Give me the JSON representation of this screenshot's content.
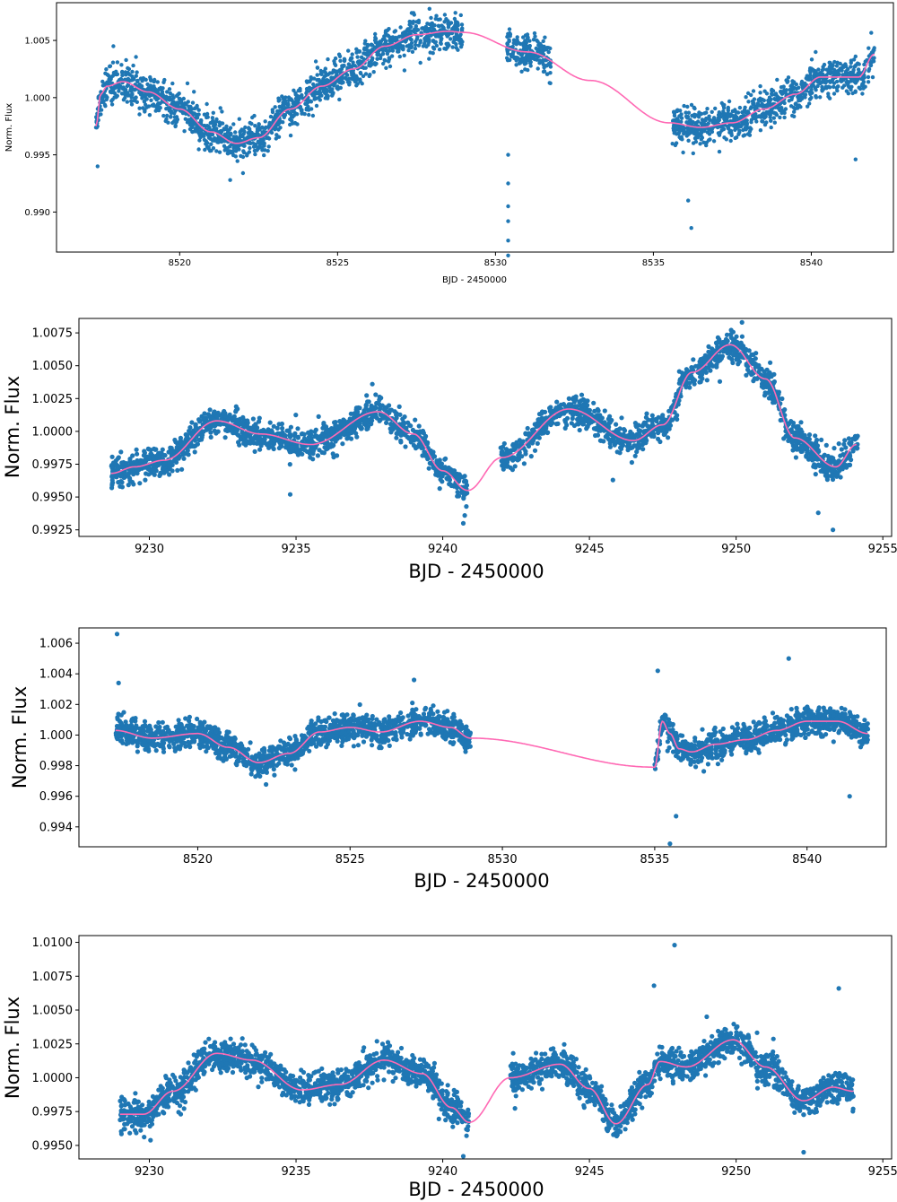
{
  "chart_data": [
    {
      "type": "scatter",
      "xlabel": "BJD - 2450000",
      "ylabel": "Norm. Flux",
      "xlim": [
        8516.1,
        8542.6
      ],
      "ylim": [
        0.9865,
        1.0083
      ],
      "xticks": [
        8520,
        8525,
        8530,
        8535,
        8540
      ],
      "xtick_labels": [
        "8520",
        "8525",
        "8530",
        "8535",
        "8540"
      ],
      "yticks": [
        0.99,
        0.995,
        1.0,
        1.005
      ],
      "ytick_labels": [
        "0.990",
        "0.995",
        "1.000",
        "1.005"
      ],
      "segments": [
        [
          8517.35,
          8528.95
        ],
        [
          8530.35,
          8531.75
        ],
        [
          8535.6,
          8542.0
        ]
      ],
      "scatter_sigma": 0.0008,
      "series": [
        {
          "name": "data",
          "style": "points",
          "color": "#1f77b4"
        },
        {
          "name": "model",
          "style": "line",
          "color": "#ff69b4",
          "x": [
            8517.35,
            8517.5,
            8517.7,
            8518.2,
            8519.0,
            8520.0,
            8521.0,
            8521.8,
            8522.5,
            8523.5,
            8524.5,
            8525.5,
            8526.5,
            8527.5,
            8528.5,
            8529.0,
            8531.0,
            8533.0,
            8535.5,
            8536.5,
            8537.5,
            8538.5,
            8539.5,
            8540.3,
            8541.0,
            8541.5,
            8542.0
          ],
          "y": [
            0.9975,
            1.0003,
            1.001,
            1.0014,
            1.0005,
            0.999,
            0.997,
            0.996,
            0.9965,
            0.999,
            1.001,
            1.0025,
            1.0045,
            1.0055,
            1.0058,
            1.0057,
            1.004,
            1.0015,
            0.9978,
            0.9974,
            0.9978,
            0.999,
            1.0003,
            1.0018,
            1.0018,
            1.0018,
            1.0038
          ]
        }
      ],
      "outliers": [
        [
          8517.4,
          0.994
        ],
        [
          8517.9,
          1.0045
        ],
        [
          8521.6,
          0.9928
        ],
        [
          8530.4,
          0.9862
        ],
        [
          8530.4,
          0.9875
        ],
        [
          8530.4,
          0.9892
        ],
        [
          8530.4,
          0.9905
        ],
        [
          8530.4,
          0.9925
        ],
        [
          8530.4,
          0.995
        ],
        [
          8536.2,
          0.9886
        ],
        [
          8536.1,
          0.991
        ],
        [
          8541.4,
          0.9946
        ]
      ]
    },
    {
      "type": "scatter",
      "xlabel": "BJD - 2450000",
      "ylabel": "Norm. Flux",
      "xlim": [
        9227.6,
        9255.3
      ],
      "ylim": [
        0.992,
        1.0086
      ],
      "xticks": [
        9230,
        9235,
        9240,
        9245,
        9250,
        9255
      ],
      "xtick_labels": [
        "9230",
        "9235",
        "9240",
        "9245",
        "9250",
        "9255"
      ],
      "yticks": [
        0.9925,
        0.995,
        0.9975,
        1.0,
        1.0025,
        1.005,
        1.0075
      ],
      "ytick_labels": [
        "0.9925",
        "0.9950",
        "0.9975",
        "1.0000",
        "1.0025",
        "1.0050",
        "1.0075"
      ],
      "segments": [
        [
          9228.7,
          9240.85
        ],
        [
          9241.95,
          9254.15
        ]
      ],
      "scatter_sigma": 0.00055,
      "series": [
        {
          "name": "data",
          "style": "points",
          "color": "#1f77b4"
        },
        {
          "name": "model",
          "style": "line",
          "color": "#ff69b4",
          "x": [
            9228.7,
            9229.5,
            9230.5,
            9232.3,
            9233.8,
            9235.5,
            9237.8,
            9239.0,
            9240.0,
            9240.85,
            9242.0,
            9244.3,
            9246.5,
            9247.5,
            9248.5,
            9249.8,
            9251.0,
            9252.0,
            9253.4,
            9254.1
          ],
          "y": [
            0.9968,
            0.9973,
            0.9978,
            1.0008,
            0.9998,
            0.999,
            1.0015,
            0.9998,
            0.997,
            0.9955,
            0.998,
            1.0017,
            0.9993,
            1.0005,
            1.0045,
            1.0066,
            1.004,
            0.9995,
            0.9973,
            0.999
          ]
        }
      ],
      "outliers": [
        [
          9234.8,
          0.9952
        ],
        [
          9240.7,
          0.993
        ],
        [
          9245.8,
          0.9963
        ],
        [
          9252.8,
          0.9938
        ],
        [
          9253.3,
          0.9925
        ],
        [
          9250.2,
          1.0083
        ],
        [
          9237.6,
          1.0036
        ]
      ]
    },
    {
      "type": "scatter",
      "xlabel": "BJD - 2450000",
      "ylabel": "Norm. Flux",
      "xlim": [
        8516.1,
        8542.6
      ],
      "ylim": [
        0.9927,
        1.007
      ],
      "xticks": [
        8520,
        8525,
        8530,
        8535,
        8540
      ],
      "xtick_labels": [
        "8520",
        "8525",
        "8530",
        "8535",
        "8540"
      ],
      "yticks": [
        0.994,
        0.996,
        0.998,
        1.0,
        1.002,
        1.004,
        1.006
      ],
      "ytick_labels": [
        "0.994",
        "0.996",
        "0.998",
        "1.000",
        "1.002",
        "1.004",
        "1.006"
      ],
      "segments": [
        [
          8517.3,
          8528.95
        ],
        [
          8535.0,
          8542.0
        ]
      ],
      "scatter_sigma": 0.00045,
      "series": [
        {
          "name": "data",
          "style": "points",
          "color": "#1f77b4"
        },
        {
          "name": "model",
          "style": "line",
          "color": "#ff69b4",
          "x": [
            8517.3,
            8518.5,
            8520.0,
            8521.0,
            8522.0,
            8523.0,
            8524.0,
            8525.0,
            8526.0,
            8527.3,
            8528.3,
            8528.95,
            8535.0,
            8535.25,
            8535.5,
            8535.8,
            8536.2,
            8537.0,
            8538.0,
            8539.0,
            8540.0,
            8541.0,
            8542.0
          ],
          "y": [
            1.0003,
            0.9998,
            1.0001,
            0.9992,
            0.9982,
            0.9988,
            1.0002,
            1.0005,
            1.0002,
            1.0009,
            1.0005,
            0.9998,
            0.9979,
            1.0009,
            1.0001,
            0.9991,
            0.9989,
            0.9994,
            0.9997,
            1.0003,
            1.0009,
            1.0009,
            1.0001
          ]
        }
      ],
      "outliers": [
        [
          8517.35,
          1.0066
        ],
        [
          8517.4,
          1.0034
        ],
        [
          8527.1,
          1.0036
        ],
        [
          8535.1,
          1.0042
        ],
        [
          8535.5,
          0.9929
        ],
        [
          8535.7,
          0.9947
        ],
        [
          8539.4,
          1.005
        ],
        [
          8541.4,
          0.996
        ]
      ]
    },
    {
      "type": "scatter",
      "xlabel": "BJD - 2450000",
      "ylabel": "Norm. Flux",
      "xlim": [
        9227.6,
        9255.3
      ],
      "ylim": [
        0.994,
        1.0105
      ],
      "xticks": [
        9230,
        9235,
        9240,
        9245,
        9250,
        9255
      ],
      "xtick_labels": [
        "9230",
        "9235",
        "9240",
        "9245",
        "9250",
        "9255"
      ],
      "yticks": [
        0.995,
        0.9975,
        1.0,
        1.0025,
        1.005,
        1.0075,
        1.01
      ],
      "ytick_labels": [
        "0.9950",
        "0.9975",
        "1.0000",
        "1.0025",
        "1.0050",
        "1.0075",
        "1.0100"
      ],
      "segments": [
        [
          9229.0,
          9240.9
        ],
        [
          9242.3,
          9254.0
        ]
      ],
      "scatter_sigma": 0.0006,
      "series": [
        {
          "name": "data",
          "style": "points",
          "color": "#1f77b4"
        },
        {
          "name": "model",
          "style": "line",
          "color": "#ff69b4",
          "x": [
            9229.0,
            9229.8,
            9230.8,
            9232.3,
            9233.5,
            9235.2,
            9236.5,
            9238.0,
            9239.3,
            9240.3,
            9240.9,
            9242.3,
            9244.0,
            9245.0,
            9245.9,
            9247.0,
            9247.4,
            9248.3,
            9249.9,
            9251.0,
            9252.3,
            9253.3,
            9254.0
          ],
          "y": [
            0.9973,
            0.9973,
            0.999,
            1.0018,
            1.0013,
            0.9991,
            0.9995,
            1.0013,
            1.0003,
            0.9978,
            0.9967,
            1.0,
            1.001,
            0.9992,
            0.9966,
            0.9995,
            1.0012,
            1.0008,
            1.0028,
            1.0008,
            0.9983,
            0.9993,
            0.999
          ]
        }
      ],
      "outliers": [
        [
          9247.9,
          1.0098
        ],
        [
          9247.2,
          1.0068
        ],
        [
          9253.5,
          1.0066
        ],
        [
          9252.3,
          0.9945
        ],
        [
          9240.7,
          0.9942
        ],
        [
          9249.0,
          1.0045
        ]
      ]
    }
  ]
}
